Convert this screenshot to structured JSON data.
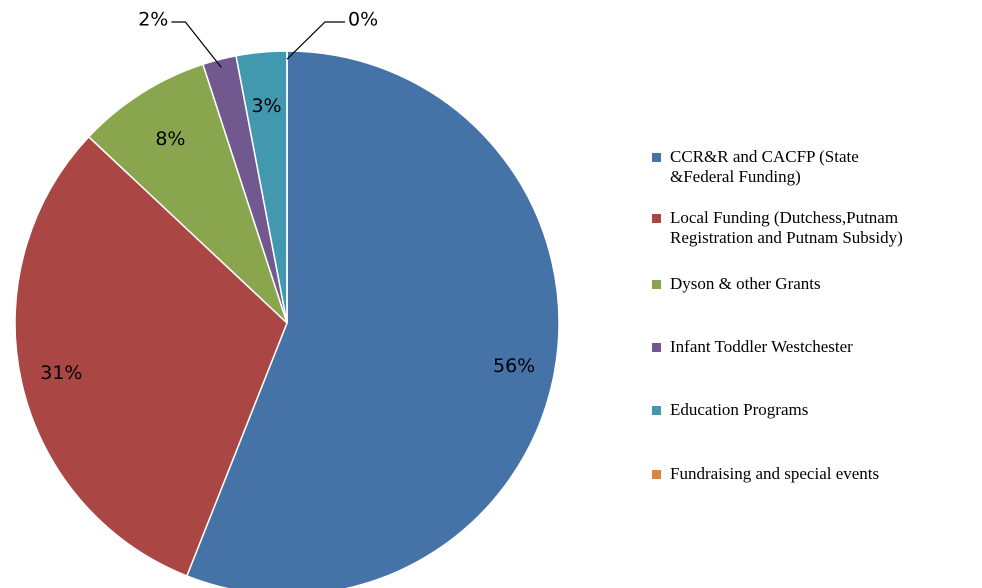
{
  "chart_data": {
    "type": "pie",
    "categories": [
      "CCR&R and CACFP (State\n&Federal Funding)",
      " Local Funding (Dutchess,Putnam\nRegistration and Putnam Subsidy)",
      "Dyson & other Grants",
      "Infant Toddler Westchester",
      "Education Programs",
      "Fundraising and special events"
    ],
    "values": [
      56,
      31,
      8,
      2,
      3,
      0
    ],
    "value_labels": [
      "56%",
      "31%",
      "8%",
      "2%",
      "3%",
      "0%"
    ],
    "colors": [
      "#4572a7",
      "#aa4643",
      "#89a54e",
      "#71588f",
      "#4198af",
      "#db843d"
    ],
    "legend": "right"
  }
}
